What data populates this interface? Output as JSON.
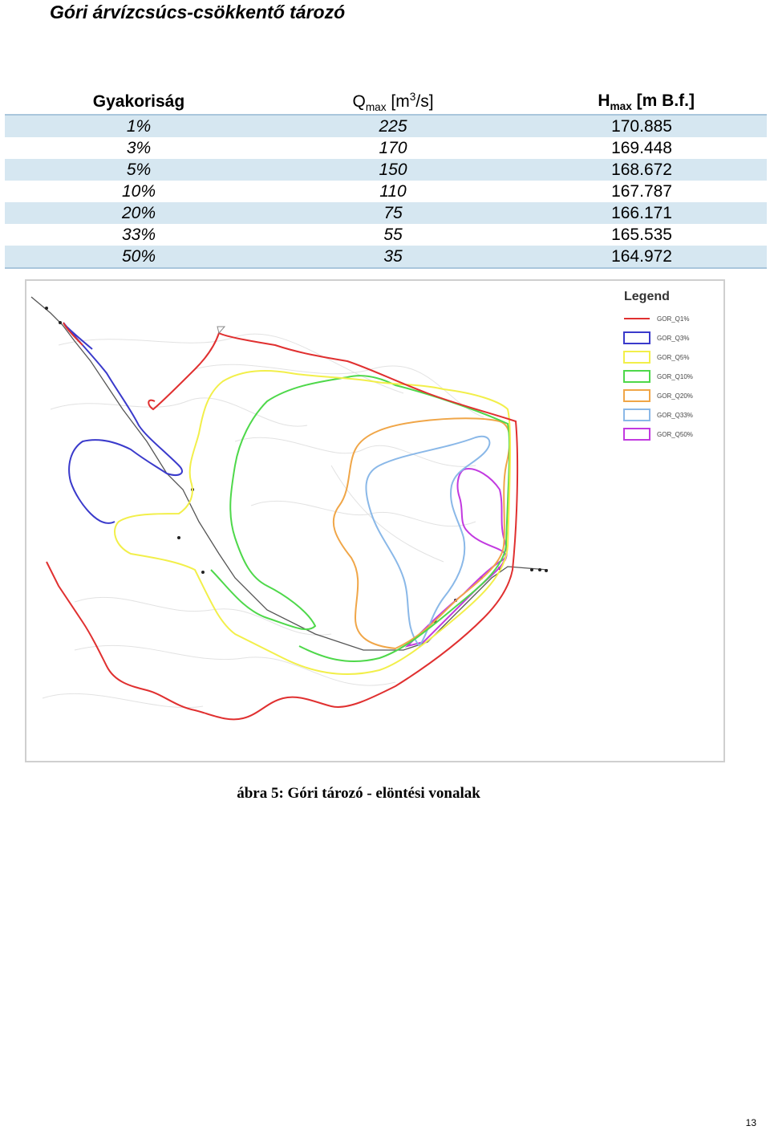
{
  "document": {
    "title": "Góri árvízcsúcs-csökkentő tározó",
    "caption": "ábra 5: Góri tározó - elöntési vonalak",
    "page_number": "13"
  },
  "table": {
    "headers": {
      "frequency": "Gyakoriság",
      "q_symbol": "Q",
      "q_sub": "max",
      "q_unit_pre": " [m",
      "q_unit_sup": "3",
      "q_unit_post": "/s]",
      "h_symbol": "H",
      "h_sub": "max",
      "h_unit": " [m B.f.]"
    },
    "rows": [
      {
        "frequency": "1%",
        "q": "225",
        "h": "170.885"
      },
      {
        "frequency": "3%",
        "q": "170",
        "h": "169.448"
      },
      {
        "frequency": "5%",
        "q": "150",
        "h": "168.672"
      },
      {
        "frequency": "10%",
        "q": "110",
        "h": "167.787"
      },
      {
        "frequency": "20%",
        "q": "75",
        "h": "166.171"
      },
      {
        "frequency": "33%",
        "q": "55",
        "h": "165.535"
      },
      {
        "frequency": "50%",
        "q": "35",
        "h": "164.972"
      }
    ]
  },
  "map": {
    "legend_title": "Legend",
    "legend_items": [
      {
        "label": "GOR_Q1%",
        "color": "#e03030"
      },
      {
        "label": "GOR_Q3%",
        "color": "#3a3acb"
      },
      {
        "label": "GOR_Q5%",
        "color": "#f2ef4a"
      },
      {
        "label": "GOR_Q10%",
        "color": "#4ed84a"
      },
      {
        "label": "GOR_Q20%",
        "color": "#f0a648"
      },
      {
        "label": "GOR_Q33%",
        "color": "#8ab8e8"
      },
      {
        "label": "GOR_Q50%",
        "color": "#c23ae0"
      }
    ]
  }
}
